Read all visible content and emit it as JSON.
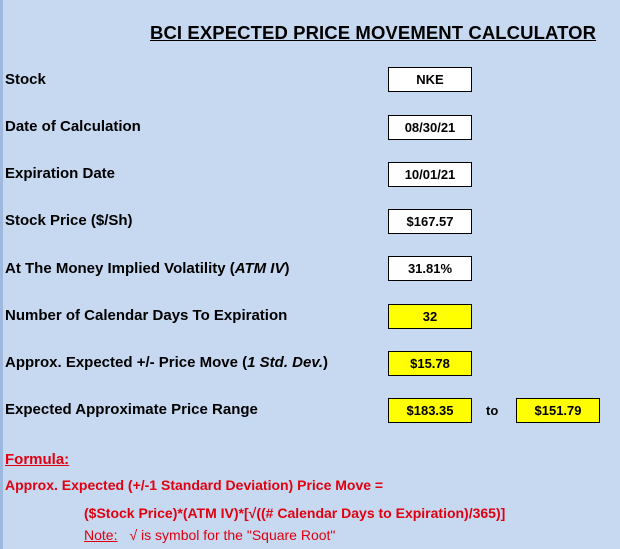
{
  "title": "BCI EXPECTED PRICE MOVEMENT CALCULATOR",
  "rows": {
    "stock": {
      "label": "Stock",
      "value": "NKE"
    },
    "date_calc": {
      "label": "Date of Calculation",
      "value": "08/30/21"
    },
    "expiration": {
      "label": "Expiration Date",
      "value": "10/01/21"
    },
    "price": {
      "label": "Stock Price ($/Sh)",
      "value": "$167.57"
    },
    "iv": {
      "label_pre": "At The Money Implied Volatility (",
      "label_em": "ATM IV",
      "label_post": ")",
      "value": "31.81%"
    },
    "days": {
      "label": "Number of Calendar Days To Expiration",
      "value": "32"
    },
    "move": {
      "label_pre": "Approx. Expected +/- Price Move (",
      "label_em": "1 Std. Dev.",
      "label_post": ")",
      "value": "$15.78"
    },
    "range": {
      "label": "Expected Approximate Price Range",
      "value_high": "$183.35",
      "to": "to",
      "value_low": "$151.79"
    }
  },
  "formula": {
    "heading": "Formula:",
    "line1": "Approx. Expected (+/-1 Standard Deviation) Price Move =",
    "line2": "($Stock Price)*(ATM IV)*[√((# Calendar Days to Expiration)/365)]",
    "note_label": "Note:",
    "note_text": "√ is symbol for the \"Square Root\""
  },
  "colors": {
    "background": "#c7d9f1",
    "highlight": "#ffff00",
    "formula_red": "#e0000f"
  }
}
